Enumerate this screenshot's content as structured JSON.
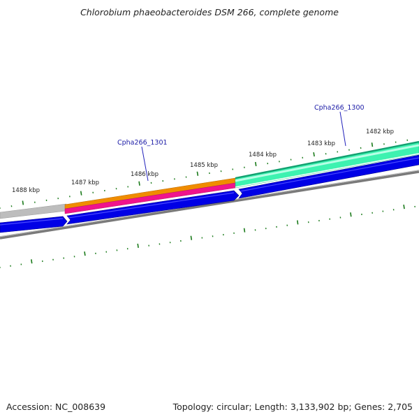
{
  "title": "Chlorobium phaeobacteroides DSM 266, complete genome",
  "footer": {
    "accession": "Accession: NC_008639",
    "summary": "Topology: circular; Length: 3,133,902 bp; Genes: 2,705"
  },
  "scale_labels": [
    "1488 kbp",
    "1487 kbp",
    "1486 kbp",
    "1485 kbp",
    "1484 kbp",
    "1483 kbp",
    "1482 kbp"
  ],
  "gene_labels": [
    "Cpha266_1301",
    "Cpha266_1300"
  ],
  "colors": {
    "tick": "#1a7a1a",
    "backbone": "#808080",
    "feature_orange": "#f08c00",
    "feature_magenta": "#f0148c",
    "feature_green": "#2ee6a0",
    "feature_green_edge": "#12b478",
    "feature_blue": "#0000e6",
    "feature_grey": "#bdbdbd",
    "label_line": "#2222bb"
  }
}
